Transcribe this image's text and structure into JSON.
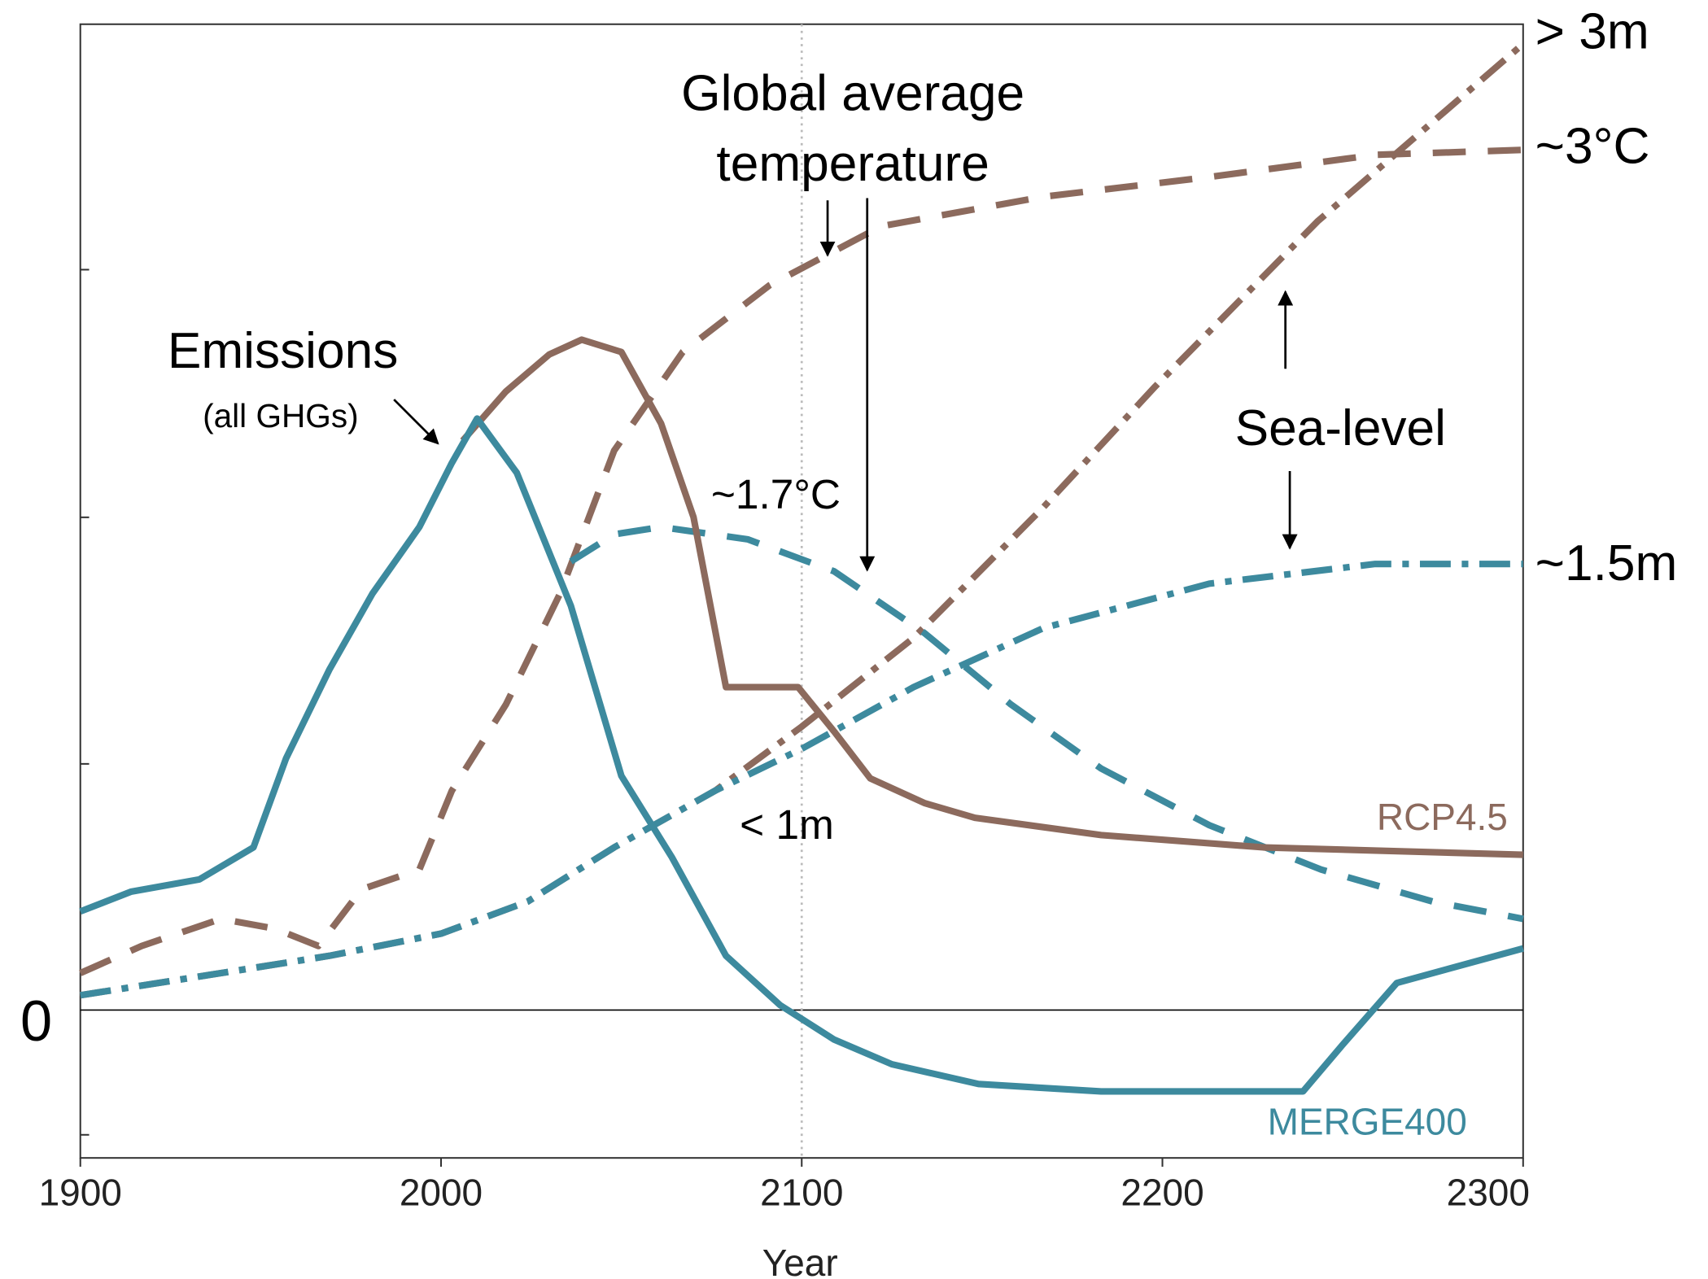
{
  "chart_data": {
    "type": "line",
    "xlabel": "Year",
    "xlim": [
      1900,
      2300
    ],
    "xticks": [
      1900,
      2000,
      2100,
      2200,
      2300
    ],
    "ylim": [
      -0.6,
      4
    ],
    "yticks": [
      0
    ],
    "vline": 2100,
    "series": [
      {
        "color": "#8c6a5d",
        "dash": "dashdot",
        "x": [
          1900,
          1939,
          1969,
          2000,
          2024,
          2048,
          2076,
          2100,
          2131,
          2167,
          2198,
          2243,
          2300
        ],
        "values": [
          0.06,
          0.15,
          0.22,
          0.31,
          0.44,
          0.66,
          0.89,
          1.15,
          1.51,
          2.04,
          2.53,
          3.2,
          3.92
        ]
      },
      {
        "color": "#3d8a9e",
        "dash": "dashdot",
        "x": [
          1900,
          1939,
          1969,
          2000,
          2024,
          2048,
          2076,
          2100,
          2131,
          2167,
          2213,
          2259,
          2300
        ],
        "values": [
          0.06,
          0.15,
          0.22,
          0.31,
          0.44,
          0.66,
          0.89,
          1.06,
          1.31,
          1.55,
          1.73,
          1.81,
          1.81
        ]
      },
      {
        "color": "#8c6a5d",
        "dash": "dashed",
        "x": [
          1900,
          1917,
          1939,
          1954,
          1966,
          1978,
          1994,
          2003,
          2018,
          2033,
          2048,
          2067,
          2091,
          2122,
          2167,
          2213,
          2259,
          2300
        ],
        "values": [
          0.15,
          0.26,
          0.37,
          0.33,
          0.26,
          0.49,
          0.57,
          0.89,
          1.24,
          1.69,
          2.27,
          2.67,
          2.94,
          3.18,
          3.3,
          3.38,
          3.47,
          3.49
        ]
      },
      {
        "color": "#3d8a9e",
        "dash": "dashed",
        "x": [
          2036,
          2048,
          2061,
          2085,
          2109,
          2134,
          2158,
          2183,
          2213,
          2244,
          2275,
          2300
        ],
        "values": [
          1.82,
          1.93,
          1.96,
          1.91,
          1.78,
          1.53,
          1.24,
          0.98,
          0.75,
          0.57,
          0.44,
          0.37
        ]
      },
      {
        "color": "#8c6a5d",
        "dash": "solid",
        "x": [
          2006,
          2018,
          2030,
          2039,
          2050,
          2061,
          2070,
          2079,
          2099,
          2109,
          2119,
          2134,
          2148,
          2183,
          2228,
          2300
        ],
        "values": [
          2.31,
          2.51,
          2.66,
          2.72,
          2.67,
          2.38,
          2.0,
          1.31,
          1.31,
          1.13,
          0.94,
          0.84,
          0.78,
          0.71,
          0.66,
          0.63
        ]
      },
      {
        "color": "#3d8a9e",
        "dash": "solid",
        "x": [
          1900,
          1914,
          1933,
          1948,
          1957,
          1969,
          1981,
          1994,
          2003,
          2010,
          2021,
          2036,
          2050,
          2064,
          2079,
          2094,
          2109,
          2125,
          2149,
          2183,
          2239,
          2250,
          2265,
          2300
        ],
        "values": [
          0.4,
          0.48,
          0.53,
          0.66,
          1.02,
          1.38,
          1.69,
          1.96,
          2.22,
          2.4,
          2.18,
          1.64,
          0.95,
          0.62,
          0.22,
          0.02,
          -0.12,
          -0.22,
          -0.3,
          -0.33,
          -0.33,
          -0.14,
          0.11,
          0.25
        ]
      }
    ],
    "annotations": [
      "Global average",
      "temperature",
      "Emissions",
      "(all GHGs)",
      "Sea-level",
      "~1.7°C",
      "< 1m",
      "RCP4.5",
      "MERGE400",
      "> 3m",
      "~3°C",
      "~1.5m"
    ]
  }
}
